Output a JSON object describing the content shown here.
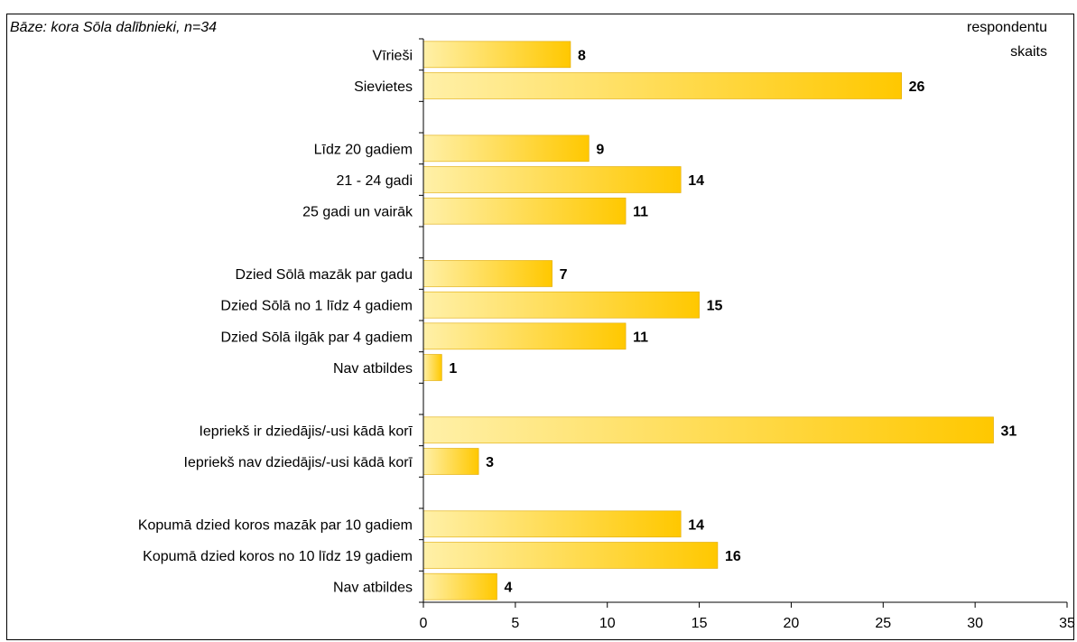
{
  "header": {
    "base_note": "Bāze: kora Sōla dalībnieki, n=34",
    "unit_line1": "respondentu",
    "unit_line2": "skaits"
  },
  "colors": {
    "bar_light": "#FFF0A8",
    "bar_dark": "#FFC800",
    "bar_edge": "#E0A800",
    "axis": "#000000"
  },
  "chart_data": {
    "type": "bar",
    "orientation": "horizontal",
    "title": "",
    "xlabel": "",
    "ylabel": "",
    "xlim": [
      0,
      35
    ],
    "xticks": [
      0,
      5,
      10,
      15,
      20,
      25,
      30,
      35
    ],
    "grid": false,
    "categories": [
      "Vīrieši",
      "Sievietes",
      "",
      "Līdz 20 gadiem",
      "21 - 24 gadi",
      "25 gadi un vairāk",
      "",
      "Dzied Sōlā mazāk par gadu",
      "Dzied Sōlā no 1 līdz 4 gadiem",
      "Dzied Sōlā ilgāk par 4 gadiem",
      "Nav atbildes",
      "",
      "Iepriekš ir dziedājis/-usi kādā korī",
      "Iepriekš nav dziedājis/-usi kādā korī",
      "",
      "Kopumā dzied koros mazāk par 10 gadiem",
      "Kopumā dzied koros no 10 līdz 19 gadiem",
      "Nav atbildes"
    ],
    "values": [
      8,
      26,
      null,
      9,
      14,
      11,
      null,
      7,
      15,
      11,
      1,
      null,
      31,
      3,
      null,
      14,
      16,
      4
    ]
  }
}
